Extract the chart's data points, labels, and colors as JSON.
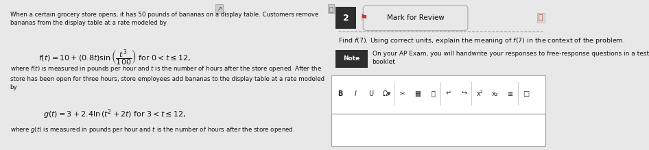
{
  "bg_color": "#e8e8e8",
  "left_panel": {
    "bg_color": "#d8d8d8",
    "body_text_1": "When a certain grocery store opens, it has 50 pounds of bananas on a display table. Customers remove\nbananas from the display table at a rate modeled by",
    "formula_f": "$f(t) = 10 + (0.8t)\\sin\\left(\\dfrac{t^3}{100}\\right)$ for $0 < t \\leq 12,$",
    "body_text_2": "where $f(t)$ is measured in pounds per hour and $t$ is the number of hours after the store opened. After the\nstore has been open for three hours, store employees add bananas to the display table at a rate modeled\nby",
    "formula_g": "$g(t) = 3 + 2.4\\ln\\left(t^2 + 2t\\right)$ for $3 < t \\leq 12,$",
    "body_text_3": "where $g(t)$ is measured in pounds per hour and $t$ is the number of hours after the store opened."
  },
  "right_panel": {
    "bg_color": "#f0f0f0",
    "number_badge": "2",
    "badge_bg": "#2d2d2d",
    "badge_fg": "#ffffff",
    "bookmark_color": "#c0392b",
    "mark_review_text": "Mark for Review",
    "question_text": "Find $f(7)$. Using correct units, explain the meaning of $f(7)$ in the context of the problem.",
    "note_label": "Note",
    "note_label_bg": "#2d2d2d",
    "note_label_fg": "#ffffff",
    "note_text": "On your AP Exam, you will handwrite your responses to free-response questions in a test\nbooklet",
    "answer_box_border": "#999999",
    "answer_box_bg": "#ffffff",
    "calculator_icon_color": "#c0392b"
  }
}
